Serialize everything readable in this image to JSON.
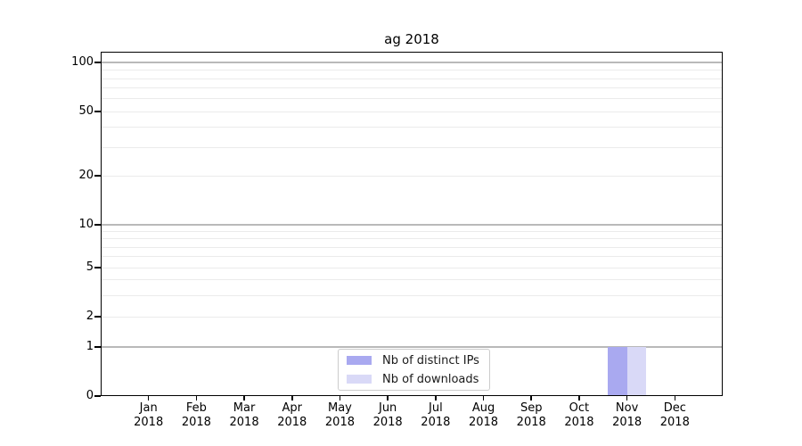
{
  "chart_data": {
    "type": "bar",
    "title": "ag 2018",
    "x": {
      "tick_labels": [
        [
          "Jan",
          "2018"
        ],
        [
          "Feb",
          "2018"
        ],
        [
          "Mar",
          "2018"
        ],
        [
          "Apr",
          "2018"
        ],
        [
          "May",
          "2018"
        ],
        [
          "Jun",
          "2018"
        ],
        [
          "Jul",
          "2018"
        ],
        [
          "Aug",
          "2018"
        ],
        [
          "Sep",
          "2018"
        ],
        [
          "Oct",
          "2018"
        ],
        [
          "Nov",
          "2018"
        ],
        [
          "Dec",
          "2018"
        ]
      ]
    },
    "y": {
      "scale": "symlog",
      "ylim": [
        0,
        130
      ],
      "tick_labels": [
        "100",
        "50",
        "20",
        "10",
        "5",
        "2",
        "1",
        "0"
      ],
      "tick_values": [
        100,
        50,
        20,
        10,
        5,
        2,
        1,
        0
      ],
      "major_gridlines": [
        1,
        10,
        100
      ],
      "minor_gridlines": [
        2,
        3,
        4,
        5,
        6,
        7,
        8,
        9,
        20,
        30,
        40,
        50,
        60,
        70,
        80,
        90
      ]
    },
    "series": [
      {
        "name": "Nb of distinct IPs",
        "color": "#a9a9f0",
        "values": [
          0,
          0,
          0,
          0,
          0,
          0,
          0,
          0,
          0,
          0,
          1,
          0
        ]
      },
      {
        "name": "Nb of downloads",
        "color": "#d9d9f7",
        "values": [
          0,
          0,
          0,
          0,
          0,
          0,
          0,
          0,
          0,
          0,
          1,
          0
        ]
      }
    ],
    "legend": {
      "position": "lower-center"
    },
    "grid": true
  }
}
